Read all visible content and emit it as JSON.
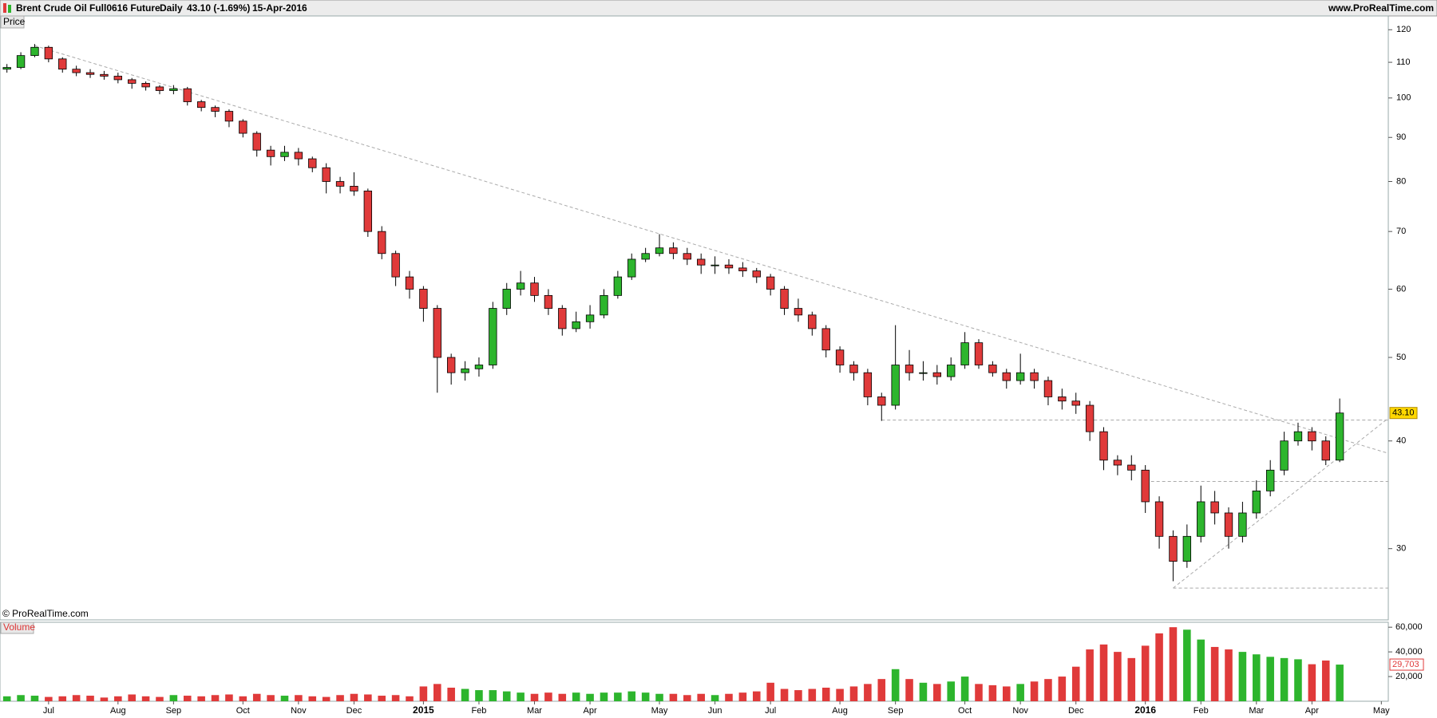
{
  "header": {
    "title": "Brent Crude Oil Full0616 Future",
    "period": "Daily",
    "quote": "43.10 (-1.69%)",
    "date": "15-Apr-2016",
    "site": "www.ProRealTime.com"
  },
  "footer": {
    "copyright": "© ProRealTime.com"
  },
  "chart_data": {
    "type": "candlestick",
    "panel_label": "Price",
    "log_scale": true,
    "up_color": "#2db52d",
    "down_color": "#e03a3a",
    "wick_color": "#000000",
    "categories": [
      null,
      null,
      null,
      "Jul",
      null,
      null,
      null,
      null,
      "Aug",
      null,
      null,
      null,
      "Sep",
      null,
      null,
      null,
      null,
      "Oct",
      null,
      null,
      null,
      "Nov",
      null,
      null,
      null,
      "Dec",
      null,
      null,
      null,
      null,
      "2015",
      null,
      null,
      null,
      "Feb",
      null,
      null,
      null,
      "Mar",
      null,
      null,
      null,
      "Apr",
      null,
      null,
      null,
      null,
      "May",
      null,
      null,
      null,
      "Jun",
      null,
      null,
      null,
      "Jul",
      null,
      null,
      null,
      null,
      "Aug",
      null,
      null,
      null,
      "Sep",
      null,
      null,
      null,
      null,
      "Oct",
      null,
      null,
      null,
      "Nov",
      null,
      null,
      null,
      "Dec",
      null,
      null,
      null,
      null,
      "2016",
      null,
      null,
      null,
      "Feb",
      null,
      null,
      null,
      "Mar",
      null,
      null,
      null,
      "Apr",
      null,
      null,
      null,
      null,
      "May"
    ],
    "open": [
      108,
      108.5,
      112,
      114.5,
      111,
      108,
      107,
      106.5,
      106,
      105,
      104,
      103,
      102,
      102.5,
      99,
      97.5,
      96.5,
      94,
      91,
      87,
      85.5,
      86.5,
      85,
      83,
      80,
      79,
      78,
      70,
      66,
      62,
      60,
      57,
      50,
      48,
      48.5,
      49,
      57,
      60,
      61,
      59,
      57,
      54,
      55,
      56,
      59,
      62,
      65,
      66,
      67,
      66,
      65,
      64,
      64,
      63.5,
      63,
      62,
      60,
      57,
      56,
      54,
      51,
      49,
      48,
      45,
      44,
      49,
      48,
      48,
      47.5,
      49,
      52,
      49,
      48,
      47,
      48,
      47,
      45,
      44.5,
      44,
      41,
      38,
      37.5,
      37,
      34,
      31,
      29,
      31,
      34,
      33,
      31,
      33,
      35,
      37,
      40,
      41,
      40,
      38,
      null,
      null,
      null
    ],
    "high": [
      109.5,
      113,
      115.5,
      115,
      111.5,
      109,
      108,
      107.5,
      107,
      105.5,
      104.5,
      103.5,
      103.5,
      103,
      99.5,
      98,
      97,
      94.5,
      91.5,
      88,
      88,
      87.5,
      85.5,
      84,
      81,
      82,
      78.5,
      71,
      66.5,
      63,
      60.5,
      57.5,
      50.5,
      49.5,
      50,
      58,
      61,
      63,
      62,
      60,
      57.5,
      56.5,
      57.5,
      60,
      63,
      66,
      67,
      69.5,
      68,
      67,
      66,
      65.5,
      65,
      64.5,
      63.5,
      62.5,
      60.5,
      58.5,
      56.5,
      54.5,
      51.5,
      49.5,
      48.5,
      45.5,
      54.5,
      51,
      49.5,
      49,
      50,
      53.5,
      52.5,
      49.5,
      48.5,
      50.5,
      48.5,
      47.5,
      46,
      45.5,
      44.5,
      41.5,
      38.5,
      38.5,
      37.5,
      34.5,
      31.5,
      32,
      35.5,
      35,
      33.5,
      34,
      36,
      38,
      41,
      42,
      41.5,
      40.5,
      44.8,
      null,
      null,
      null
    ],
    "low": [
      107,
      108,
      111.5,
      110,
      107,
      106,
      105.5,
      105,
      104,
      102.5,
      102,
      101,
      101,
      98,
      96.5,
      95,
      92.5,
      90,
      85.5,
      83.5,
      84.5,
      83.5,
      82,
      77.5,
      77.5,
      77,
      69,
      65,
      60.5,
      58.5,
      55,
      45.5,
      46.5,
      47,
      47.5,
      48.5,
      56,
      59,
      58,
      56,
      53,
      53.5,
      54,
      55.5,
      58.5,
      61.5,
      64.5,
      65.5,
      65,
      64,
      62.5,
      62.5,
      62.5,
      62,
      61,
      59,
      56,
      55,
      53,
      50,
      48,
      47,
      44,
      42.2,
      43.5,
      47,
      47,
      46.5,
      47,
      48.5,
      48.5,
      47.5,
      46,
      46.5,
      46,
      44,
      43.5,
      43,
      40,
      37,
      36.5,
      36,
      33,
      30,
      27.5,
      28.5,
      30.5,
      32,
      30,
      30.5,
      32.5,
      34.5,
      36.5,
      39.5,
      39,
      37.5,
      37.8,
      null,
      null,
      null
    ],
    "close": [
      108.5,
      112,
      114.5,
      111,
      108,
      107,
      106.5,
      106,
      105,
      104,
      103,
      102,
      102.5,
      99,
      97.5,
      96.5,
      94,
      91,
      87,
      85.5,
      86.5,
      85,
      83,
      80,
      79,
      78,
      70,
      66,
      62,
      60,
      57,
      50,
      48,
      48.5,
      49,
      57,
      60,
      61,
      59,
      57,
      54,
      55,
      56,
      59,
      62,
      65,
      66,
      67,
      66,
      65,
      64,
      64,
      63.5,
      63,
      62,
      60,
      57,
      56,
      54,
      51,
      49,
      48,
      45,
      44,
      49,
      48,
      48,
      47.5,
      49,
      52,
      49,
      48,
      47,
      48,
      47,
      45,
      44.5,
      44,
      41,
      38,
      37.5,
      37,
      34,
      31,
      29,
      31,
      34,
      33,
      31,
      33,
      35,
      37,
      40,
      41,
      40,
      38,
      43.1,
      null,
      null,
      null
    ],
    "ylim": [
      24.8,
      124.5
    ],
    "yticks": [
      30,
      40,
      50,
      60,
      70,
      80,
      90,
      100,
      110,
      120
    ],
    "last_price": {
      "value": 43.1,
      "label": "43.10"
    },
    "trendline_color": "#aaaaaa",
    "trendlines": [
      {
        "x": [
          2,
          99.5
        ],
        "y": [
          115,
          38.7
        ]
      },
      {
        "x": [
          63,
          99.5
        ],
        "y": [
          42.3,
          42.3
        ]
      },
      {
        "x": [
          82,
          99.5
        ],
        "y": [
          35.9,
          35.9
        ]
      },
      {
        "x": [
          84,
          99.5
        ],
        "y": [
          27.0,
          27.0
        ]
      },
      {
        "x": [
          84,
          99.5
        ],
        "y": [
          27.0,
          42.5
        ]
      }
    ],
    "volume": {
      "label": "Volume",
      "values": [
        4000,
        5000,
        4500,
        3500,
        4000,
        5000,
        4500,
        3000,
        4000,
        5500,
        4000,
        3500,
        5000,
        4500,
        4000,
        5000,
        5500,
        4000,
        6000,
        5000,
        4500,
        5000,
        4000,
        3500,
        5000,
        6000,
        5500,
        4500,
        5000,
        4000,
        12000,
        14000,
        11000,
        10000,
        9000,
        9000,
        8000,
        7000,
        6000,
        7000,
        6000,
        7000,
        6000,
        7000,
        7000,
        8000,
        7000,
        6000,
        6000,
        5000,
        6000,
        5000,
        6000,
        7000,
        8000,
        15000,
        10000,
        9000,
        10000,
        11000,
        10000,
        12000,
        14000,
        18000,
        26000,
        18000,
        15000,
        14000,
        16000,
        20000,
        14000,
        13000,
        12000,
        14000,
        16000,
        18000,
        20000,
        28000,
        42000,
        46000,
        40000,
        35000,
        45000,
        55000,
        60000,
        58000,
        50000,
        44000,
        42000,
        40000,
        38000,
        36000,
        35000,
        34000,
        30000,
        33000,
        29703,
        null,
        null,
        null
      ],
      "ylim": [
        0,
        64000
      ],
      "yticks": [
        {
          "value": 20000,
          "label": "20,000"
        },
        {
          "value": 40000,
          "label": "40,000"
        },
        {
          "value": 60000,
          "label": "60,000"
        }
      ],
      "last": {
        "value": 29703,
        "label": "29,703"
      }
    }
  }
}
